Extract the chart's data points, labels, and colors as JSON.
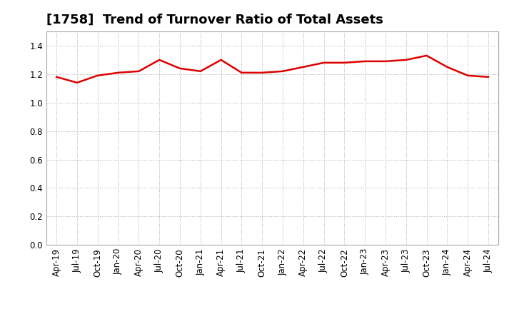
{
  "title": "[1758]  Trend of Turnover Ratio of Total Assets",
  "x_labels": [
    "Apr-19",
    "Jul-19",
    "Oct-19",
    "Jan-20",
    "Apr-20",
    "Jul-20",
    "Oct-20",
    "Jan-21",
    "Apr-21",
    "Jul-21",
    "Oct-21",
    "Jan-22",
    "Apr-22",
    "Jul-22",
    "Oct-22",
    "Jan-23",
    "Apr-23",
    "Jul-23",
    "Oct-23",
    "Jan-24",
    "Apr-24",
    "Jul-24"
  ],
  "y_values": [
    1.18,
    1.14,
    1.19,
    1.21,
    1.22,
    1.3,
    1.24,
    1.22,
    1.3,
    1.21,
    1.21,
    1.22,
    1.25,
    1.28,
    1.28,
    1.29,
    1.29,
    1.3,
    1.33,
    1.25,
    1.19,
    1.18
  ],
  "line_color": "#dd0000",
  "line_width": 1.8,
  "ylim": [
    0.0,
    1.5
  ],
  "yticks": [
    0.0,
    0.2,
    0.4,
    0.6,
    0.8,
    1.0,
    1.2,
    1.4
  ],
  "background_color": "#ffffff",
  "plot_bg_color": "#ffffff",
  "grid_color": "#aaaaaa",
  "title_fontsize": 13,
  "tick_fontsize": 8.5
}
